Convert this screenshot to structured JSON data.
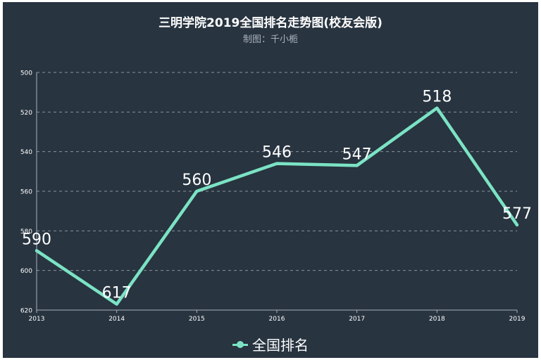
{
  "title": "三明学院2019全国排名走势图(校友会版)",
  "subtitle": "制图：千小栀",
  "chart_data": {
    "type": "line",
    "categories": [
      "2013",
      "2014",
      "2015",
      "2016",
      "2017",
      "2018",
      "2019"
    ],
    "series": [
      {
        "name": "全国排名",
        "values": [
          590,
          617,
          560,
          546,
          547,
          518,
          577
        ],
        "color": "#7be3c4"
      }
    ],
    "ylim": [
      500,
      620
    ],
    "y_inverted": true,
    "y_ticks": [
      "500",
      "520",
      "540",
      "560",
      "580",
      "600",
      "620"
    ],
    "grid": true,
    "legend": "bottom-center",
    "data_labels": true
  },
  "colors": {
    "background": "#283440",
    "line": "#7be3c4",
    "text": "#ffffff",
    "grid": "#8a939c"
  }
}
